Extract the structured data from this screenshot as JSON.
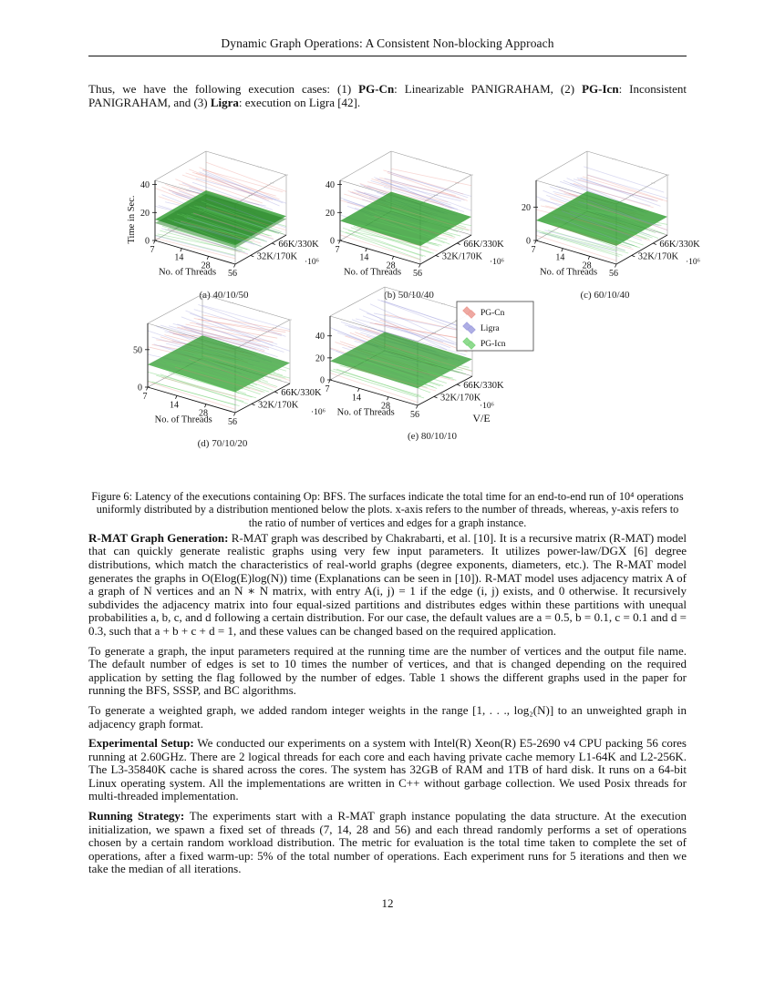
{
  "page": {
    "header_title": "Dynamic Graph Operations: A Consistent Non-blocking Approach",
    "page_number": "12"
  },
  "intro": {
    "segments": [
      {
        "t": "Thus, we have the following execution cases:  (1) ",
        "b": false
      },
      {
        "t": "PG-Cn",
        "b": true
      },
      {
        "t": ":  Linearizable PANIGRAHAM, (2) ",
        "b": false
      },
      {
        "t": "PG-Icn",
        "b": true
      },
      {
        "t": ":  Inconsistent PANIGRAHAM, and (3) ",
        "b": false
      },
      {
        "t": "Ligra",
        "b": true
      },
      {
        "t": ": execution on Ligra [42].",
        "b": false
      }
    ]
  },
  "figure": {
    "caption": "Figure 6: Latency of the executions containing Op: BFS. The surfaces indicate the total time for an end-to-end run of 10⁴ operations uniformly distributed by a distribution mentioned below the plots. x-axis refers to the number of threads, whereas, y-axis refers to the ratio of number of vertices and edges for a graph instance."
  },
  "chart_data": {
    "type": "surface",
    "description": "Five 3D latency surface plots (time vs. number of threads vs. graph size V/E) for three implementations.",
    "xlabel": "No. of Threads",
    "x_ticks": [
      "7",
      "14",
      "28",
      "56"
    ],
    "ylabel": "V/E",
    "y_ticks": [
      "32K/170K",
      "66K/330K"
    ],
    "y_scale": "·10⁶",
    "zlabel": "Time in Sec.",
    "legend": [
      {
        "name": "PG-Cn",
        "color": "#e8857b"
      },
      {
        "name": "Ligra",
        "color": "#8b8bd8"
      },
      {
        "name": "PG-Icn",
        "color": "#5fca5f"
      }
    ],
    "plots": [
      {
        "label": "(a) 40/10/50",
        "z_ticks": [
          0,
          20,
          40
        ],
        "zmax": 43,
        "series": [
          {
            "name": "PG-Cn",
            "kind": "fan",
            "n": 16,
            "z_start": [
              30,
              37.5
            ],
            "z_end": [
              27,
              35
            ],
            "opacity": 0.32
          },
          {
            "name": "Ligra",
            "kind": "fan",
            "n": 16,
            "z_start": [
              22.5,
              31
            ],
            "z_end": [
              21,
              29.5
            ],
            "opacity": 0.32
          },
          {
            "name": "PG-Icn",
            "kind": "sheet",
            "z_start": 15,
            "z_end": 13.5,
            "fill": "#2d9b2d",
            "opacity": 0.8
          },
          {
            "name": "PG-Icn",
            "kind": "sheet",
            "z_start": 12.5,
            "z_end": 11.5,
            "fill": "#1e7e1e",
            "opacity": 0.5
          },
          {
            "name": "PG-Icn",
            "kind": "fan",
            "n": 22,
            "z_start": [
              1,
              11
            ],
            "z_end": [
              1,
              9.5
            ],
            "opacity": 0.4
          },
          {
            "name": "Ligra",
            "kind": "fan",
            "n": 9,
            "z_start": [
              2,
              10
            ],
            "z_end": [
              2,
              9
            ],
            "opacity": 0.3
          },
          {
            "name": "PG-Cn",
            "kind": "fan",
            "n": 5,
            "z_start": [
              1.5,
              6
            ],
            "z_end": [
              1.5,
              5
            ],
            "opacity": 0.3
          }
        ]
      },
      {
        "label": "(b) 50/10/40",
        "z_ticks": [
          0,
          20,
          40
        ],
        "zmax": 43,
        "series": [
          {
            "name": "PG-Cn",
            "kind": "fan",
            "n": 14,
            "z_start": [
              28,
              33
            ],
            "z_end": [
              25,
              36
            ],
            "opacity": 0.32
          },
          {
            "name": "Ligra",
            "kind": "fan",
            "n": 16,
            "z_start": [
              24,
              32
            ],
            "z_end": [
              23,
              31
            ],
            "opacity": 0.32
          },
          {
            "name": "Ligra",
            "kind": "fan",
            "n": 8,
            "z_start": [
              17,
              22
            ],
            "z_end": [
              16,
              21
            ],
            "opacity": 0.3
          },
          {
            "name": "PG-Icn",
            "kind": "sheet",
            "z_start": 14,
            "z_end": 13,
            "fill": "#2d9b2d",
            "opacity": 0.8
          },
          {
            "name": "PG-Icn",
            "kind": "fan",
            "n": 20,
            "z_start": [
              1,
              10.5
            ],
            "z_end": [
              1,
              9
            ],
            "opacity": 0.4
          },
          {
            "name": "PG-Cn",
            "kind": "fan",
            "n": 4,
            "z_start": [
              2,
              6
            ],
            "z_end": [
              2,
              5
            ],
            "opacity": 0.3
          }
        ]
      },
      {
        "label": "(c) 60/10/40",
        "z_ticks": [
          0,
          20
        ],
        "zmax": 36,
        "series": [
          {
            "name": "Ligra",
            "kind": "fan",
            "n": 16,
            "z_start": [
              21,
              28
            ],
            "z_end": [
              19.5,
              27
            ],
            "opacity": 0.32
          },
          {
            "name": "PG-Cn",
            "kind": "fan",
            "n": 12,
            "z_start": [
              17,
              23
            ],
            "z_end": [
              16,
              24.5
            ],
            "opacity": 0.32
          },
          {
            "name": "PG-Icn",
            "kind": "sheet",
            "z_start": 12,
            "z_end": 11,
            "fill": "#2d9b2d",
            "opacity": 0.8
          },
          {
            "name": "PG-Icn",
            "kind": "fan",
            "n": 18,
            "z_start": [
              1,
              9
            ],
            "z_end": [
              1,
              8
            ],
            "opacity": 0.4
          },
          {
            "name": "Ligra",
            "kind": "fan",
            "n": 7,
            "z_start": [
              3,
              10
            ],
            "z_end": [
              2.5,
              9
            ],
            "opacity": 0.3
          },
          {
            "name": "PG-Cn",
            "kind": "fan",
            "n": 4,
            "z_start": [
              1.5,
              5
            ],
            "z_end": [
              1.5,
              4.5
            ],
            "opacity": 0.3
          }
        ]
      },
      {
        "label": "(d) 70/10/20",
        "z_ticks": [
          0,
          50
        ],
        "zmax": 85,
        "series": [
          {
            "name": "Ligra",
            "kind": "fan",
            "n": 14,
            "z_start": [
              62,
              76
            ],
            "z_end": [
              60,
              74
            ],
            "opacity": 0.32
          },
          {
            "name": "PG-Cn",
            "kind": "fan",
            "n": 14,
            "z_start": [
              52,
              60
            ],
            "z_end": [
              56,
              79
            ],
            "opacity": 0.38
          },
          {
            "name": "Ligra",
            "kind": "fan",
            "n": 10,
            "z_start": [
              43,
              55
            ],
            "z_end": [
              41,
              53
            ],
            "opacity": 0.32
          },
          {
            "name": "PG-Icn",
            "kind": "sheet",
            "z_start": 30,
            "z_end": 27.5,
            "fill": "#2d9b2d",
            "opacity": 0.75
          },
          {
            "name": "PG-Icn",
            "kind": "fan",
            "n": 16,
            "z_start": [
              17,
              29
            ],
            "z_end": [
              15,
              27
            ],
            "opacity": 0.4
          },
          {
            "name": "PG-Icn",
            "kind": "fan",
            "n": 14,
            "z_start": [
              2,
              13
            ],
            "z_end": [
              2,
              11.5
            ],
            "opacity": 0.4
          },
          {
            "name": "PG-Cn",
            "kind": "fan",
            "n": 5,
            "z_start": [
              3,
              9
            ],
            "z_end": [
              3,
              8
            ],
            "opacity": 0.3
          }
        ]
      },
      {
        "label": "(e) 80/10/10",
        "z_ticks": [
          0,
          20,
          40
        ],
        "zmax": 58,
        "series": [
          {
            "name": "Ligra",
            "kind": "fan",
            "n": 16,
            "z_start": [
              39,
              51
            ],
            "z_end": [
              35,
              47
            ],
            "opacity": 0.32
          },
          {
            "name": "PG-Cn",
            "kind": "fan",
            "n": 12,
            "z_start": [
              29,
              34
            ],
            "z_end": [
              23,
              43
            ],
            "opacity": 0.38
          },
          {
            "name": "Ligra",
            "kind": "fan",
            "n": 10,
            "z_start": [
              21,
              30
            ],
            "z_end": [
              19,
              28
            ],
            "opacity": 0.32
          },
          {
            "name": "PG-Icn",
            "kind": "sheet",
            "z_start": 17,
            "z_end": 15.5,
            "fill": "#2d9b2d",
            "opacity": 0.75
          },
          {
            "name": "PG-Icn",
            "kind": "fan",
            "n": 18,
            "z_start": [
              2,
              13
            ],
            "z_end": [
              2,
              12
            ],
            "opacity": 0.45
          },
          {
            "name": "PG-Cn",
            "kind": "fan",
            "n": 4,
            "z_start": [
              2,
              7
            ],
            "z_end": [
              2,
              6
            ],
            "opacity": 0.3
          }
        ]
      }
    ]
  },
  "body": [
    {
      "lead": "R-MAT Graph Generation: ",
      "text": "R-MAT graph was described by Chakrabarti, et al. [10]. It is a recursive matrix (R-MAT) model that can quickly generate realistic graphs using very few input parameters. It utilizes power-law/DGX [6] degree distributions, which match the characteristics of real-world graphs (degree exponents, diameters, etc.). The R-MAT model generates the graphs in O(Elog(E)log(N)) time (Explanations can be seen in [10]). R-MAT model uses adjacency matrix A of a graph of N vertices and an N ∗ N matrix, with entry A(i, j) = 1 if the edge (i, j) exists, and 0 otherwise. It recursively subdivides the adjacency matrix into four equal-sized partitions and distributes edges within these partitions with unequal probabilities a, b, c, and d following a certain distribution. For our case, the default values are a = 0.5, b = 0.1, c = 0.1 and d = 0.3, such that a + b + c + d = 1, and these values can be changed based on the required application."
    },
    {
      "lead": "",
      "text": "To generate a graph, the input parameters required at the running time are the number of vertices and the output file name. The default number of edges is set to 10 times the number of vertices, and that is changed depending on the required application by setting the flag followed by the number of edges. Table 1 shows the different graphs used in the paper for running the BFS, SSSP, and BC algorithms."
    },
    {
      "lead": "",
      "text": "To generate a weighted graph, we added random integer weights in the range [1, . . ., log₂(N)] to an unweighted graph in adjacency graph format."
    },
    {
      "lead": "Experimental Setup: ",
      "text": "We conducted our experiments on a system with Intel(R) Xeon(R) E5-2690 v4 CPU packing 56 cores running at 2.60GHz. There are 2 logical threads for each core and each having private cache memory L1-64K and L2-256K. The L3-35840K cache is shared across the cores. The system has 32GB of RAM and 1TB of hard disk. It runs on a 64-bit Linux operating system. All the implementations are written in C++ without garbage collection. We used Posix threads for multi-threaded implementation."
    },
    {
      "lead": "Running Strategy: ",
      "text": "The experiments start with a R-MAT graph instance populating the data structure. At the execution initialization, we spawn a fixed set of threads (7, 14, 28 and 56) and each thread randomly performs a set of operations chosen by a certain random workload distribution. The metric for evaluation is the total time taken to complete the set of operations, after a fixed warm-up: 5% of the total number of operations. Each experiment runs for 5 iterations and then we take the median of all iterations."
    }
  ]
}
